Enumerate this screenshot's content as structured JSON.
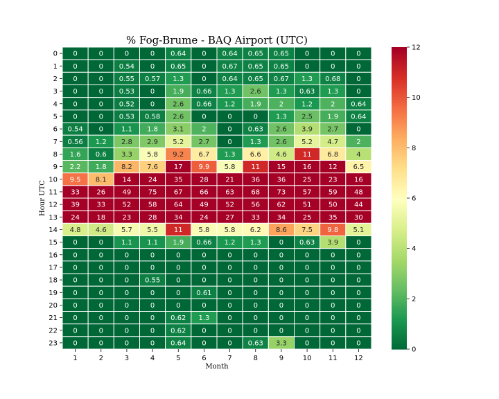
{
  "chart_data": {
    "type": "heatmap",
    "title": "% Fog-Brume - BAQ Airport (UTC)",
    "xlabel": "Month",
    "ylabel": "Hour UTC",
    "x_categories": [
      "1",
      "2",
      "3",
      "4",
      "5",
      "6",
      "7",
      "8",
      "9",
      "10",
      "11",
      "12"
    ],
    "y_categories": [
      "0",
      "1",
      "2",
      "3",
      "4",
      "5",
      "6",
      "7",
      "8",
      "9",
      "10",
      "11",
      "12",
      "13",
      "14",
      "15",
      "16",
      "17",
      "18",
      "19",
      "20",
      "21",
      "22",
      "23"
    ],
    "values": [
      [
        0,
        0,
        0,
        0,
        0.64,
        0,
        0.64,
        0.65,
        0.65,
        0,
        0,
        0
      ],
      [
        0,
        0,
        0.54,
        0,
        0.65,
        0,
        0.67,
        0.65,
        0.65,
        0,
        0,
        0
      ],
      [
        0,
        0,
        0.55,
        0.57,
        1.3,
        0,
        0.64,
        0.65,
        0.67,
        1.3,
        0.68,
        0
      ],
      [
        0,
        0,
        0.53,
        0,
        1.9,
        0.66,
        1.3,
        2.6,
        1.3,
        0.63,
        1.3,
        0
      ],
      [
        0,
        0,
        0.52,
        0,
        2.6,
        0.66,
        1.2,
        1.9,
        2,
        1.2,
        2,
        0.64
      ],
      [
        0,
        0,
        0.53,
        0.58,
        2.6,
        0,
        0,
        0,
        1.3,
        2.5,
        1.9,
        0.64
      ],
      [
        0.54,
        0,
        1.1,
        1.8,
        3.1,
        2,
        0,
        0.63,
        2.6,
        3.9,
        2.7,
        0
      ],
      [
        0.56,
        1.2,
        2.8,
        2.9,
        5.2,
        2.7,
        0,
        1.3,
        2.6,
        5.2,
        4.7,
        2
      ],
      [
        1.6,
        0.6,
        3.3,
        5.8,
        9.2,
        6.7,
        1.3,
        6.6,
        4.6,
        11,
        6.8,
        4
      ],
      [
        2.2,
        1.8,
        8.2,
        7.6,
        17,
        9.9,
        5.8,
        11,
        15,
        16,
        12,
        6.5
      ],
      [
        9.5,
        8.1,
        14,
        24,
        35,
        28,
        21,
        36,
        36,
        25,
        23,
        16
      ],
      [
        33,
        26,
        49,
        75,
        67,
        66,
        63,
        68,
        73,
        57,
        59,
        48
      ],
      [
        39,
        33,
        52,
        58,
        64,
        49,
        52,
        56,
        62,
        51,
        50,
        44
      ],
      [
        24,
        18,
        23,
        28,
        34,
        24,
        27,
        33,
        34,
        25,
        35,
        30
      ],
      [
        4.8,
        4.6,
        5.7,
        5.5,
        11,
        5.8,
        5.8,
        6.2,
        8.6,
        7.5,
        9.8,
        5.1
      ],
      [
        0,
        0,
        1.1,
        1.1,
        1.9,
        0.66,
        1.2,
        1.3,
        0,
        0.63,
        3.9,
        0
      ],
      [
        0,
        0,
        0,
        0,
        0,
        0,
        0,
        0,
        0,
        0,
        0,
        0
      ],
      [
        0,
        0,
        0,
        0,
        0,
        0,
        0,
        0,
        0,
        0,
        0,
        0
      ],
      [
        0,
        0,
        0,
        0.55,
        0,
        0,
        0,
        0,
        0,
        0,
        0,
        0
      ],
      [
        0,
        0,
        0,
        0,
        0,
        0.61,
        0,
        0,
        0,
        0,
        0,
        0
      ],
      [
        0,
        0,
        0,
        0,
        0,
        0,
        0,
        0,
        0,
        0,
        0,
        0
      ],
      [
        0,
        0,
        0,
        0,
        0.62,
        1.3,
        0,
        0,
        0,
        0,
        0,
        0
      ],
      [
        0,
        0,
        0,
        0,
        0.62,
        0,
        0,
        0,
        0,
        0,
        0,
        0
      ],
      [
        0,
        0,
        0,
        0,
        0.64,
        0,
        0,
        0.63,
        3.3,
        0,
        0,
        0
      ]
    ],
    "colorbar": {
      "min": 0,
      "max": 12,
      "ticks": [
        "0",
        "2",
        "4",
        "6",
        "8",
        "10",
        "12"
      ],
      "colormap": "RdYlGn_r"
    },
    "grid": false,
    "legend": "colorbar-right"
  }
}
